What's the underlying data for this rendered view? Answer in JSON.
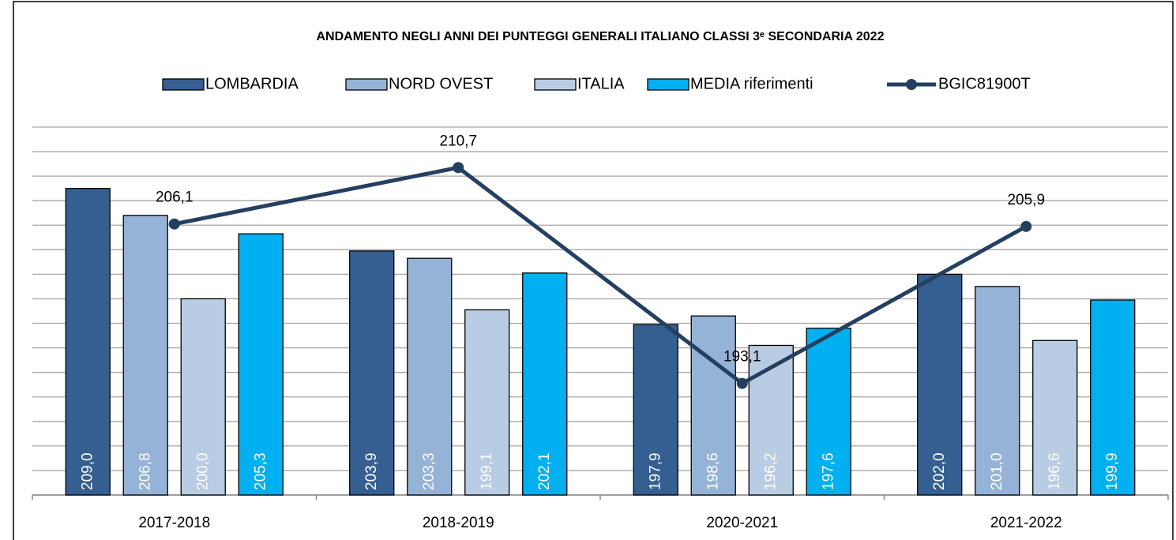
{
  "chart_data": {
    "type": "bar",
    "title": "ANDAMENTO NEGLI ANNI DEI PUNTEGGI GENERALI ITALIANO CLASSI 3ᵉ SECONDARIA 2022",
    "categories": [
      "2017-2018",
      "2018-2019",
      "2020-2021",
      "2021-2022"
    ],
    "series": [
      {
        "name": "LOMBARDIA",
        "color": "#365f91",
        "values": [
          209.0,
          203.9,
          197.9,
          202.0
        ],
        "value_labels": [
          "209,0",
          "203,9",
          "197,9",
          "202,0"
        ]
      },
      {
        "name": "NORD OVEST",
        "color": "#95b3d7",
        "values": [
          206.8,
          203.3,
          198.6,
          201.0
        ],
        "value_labels": [
          "206,8",
          "203,3",
          "198,6",
          "201,0"
        ]
      },
      {
        "name": "ITALIA",
        "color": "#b8cce4",
        "values": [
          200.0,
          199.1,
          196.2,
          196.6
        ],
        "value_labels": [
          "200,0",
          "199,1",
          "196,2",
          "196,6"
        ]
      },
      {
        "name": "MEDIA riferimenti",
        "color": "#00b0f0",
        "values": [
          205.3,
          202.1,
          197.6,
          199.9
        ],
        "value_labels": [
          "205,3",
          "202,1",
          "197,6",
          "199,9"
        ]
      },
      {
        "name": "BGIC81900T",
        "type": "line",
        "color": "#243f60",
        "values": [
          206.1,
          210.7,
          193.1,
          205.9
        ],
        "value_labels": [
          "206,1",
          "210,7",
          "193,1",
          "205,9"
        ]
      }
    ],
    "ylim": [
      184,
      214
    ],
    "yticks": [
      184,
      186,
      188,
      190,
      192,
      194,
      196,
      198,
      200,
      202,
      204,
      206,
      208,
      210,
      212,
      214
    ],
    "grid": true
  }
}
